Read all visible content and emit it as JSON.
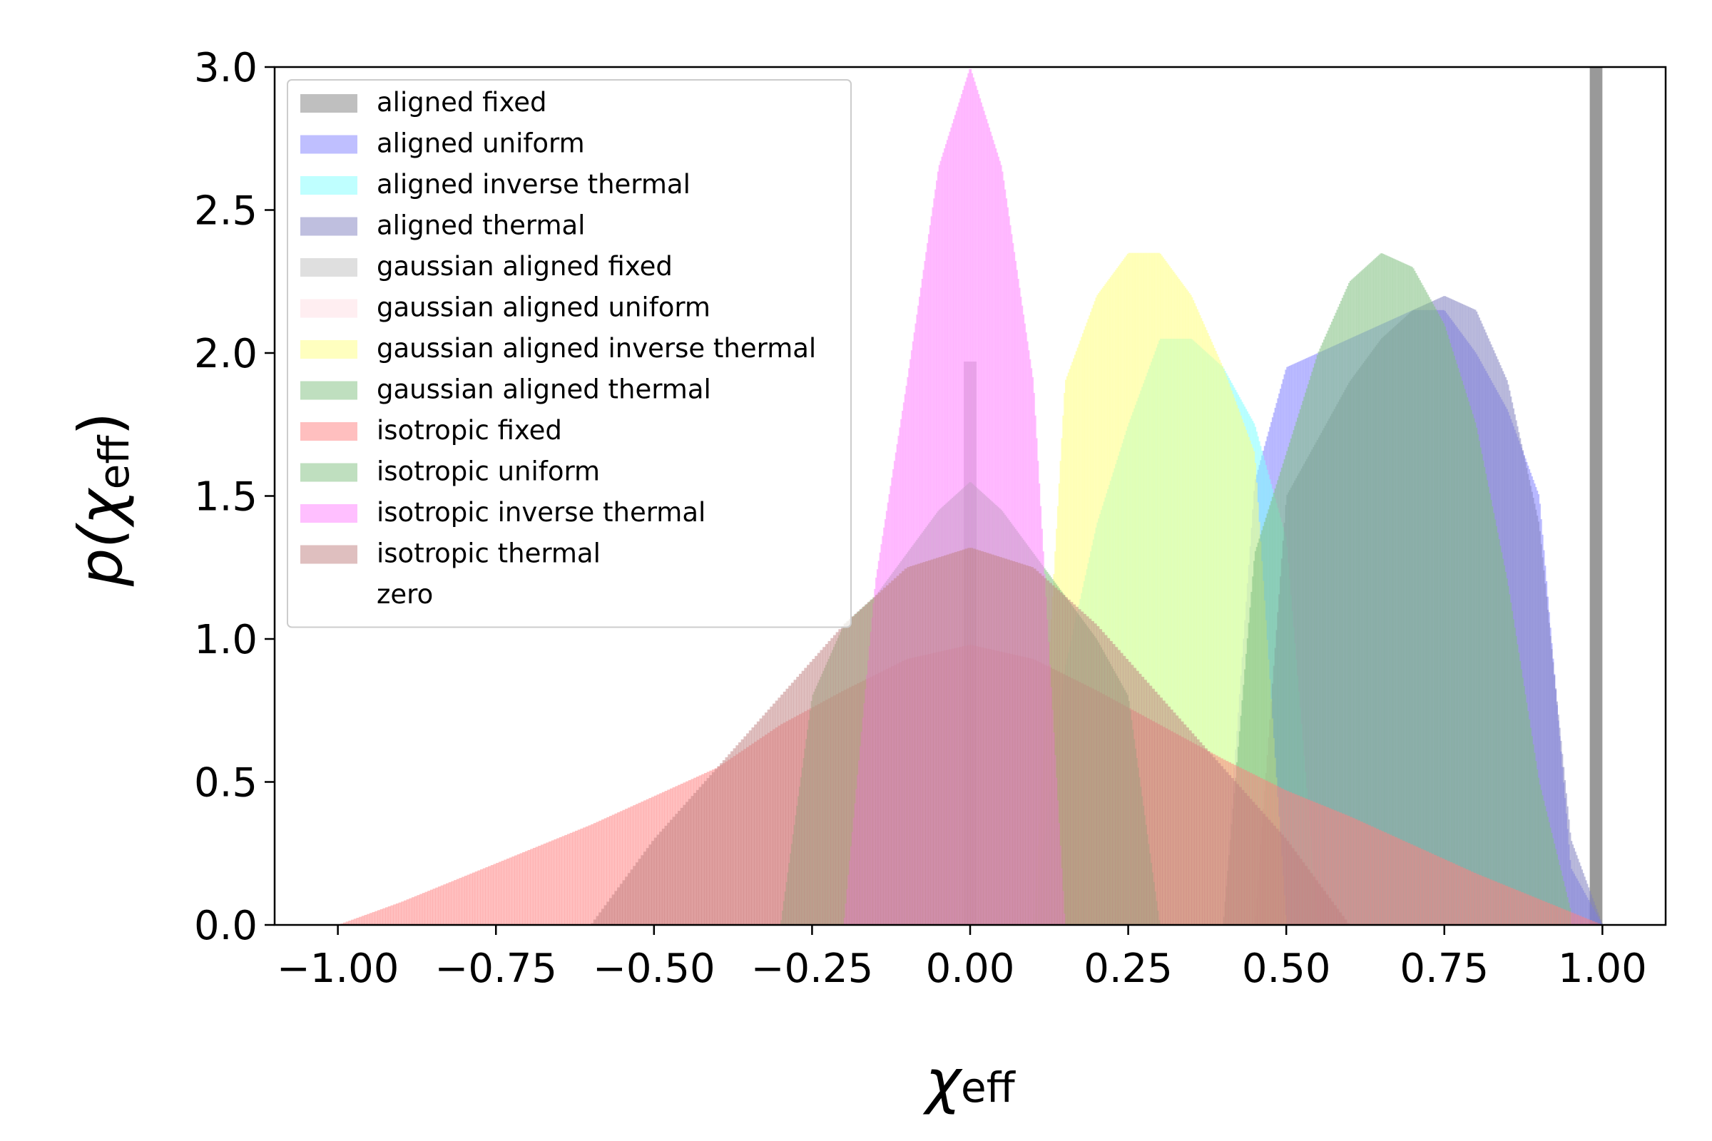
{
  "chart_data": {
    "type": "bar",
    "xlabel": "χeff",
    "ylabel": "p(χeff)",
    "xlim": [
      -1.1,
      1.1
    ],
    "ylim": [
      0,
      3.0
    ],
    "xticks": [
      -1.0,
      -0.75,
      -0.5,
      -0.25,
      0.0,
      0.25,
      0.5,
      0.75,
      1.0
    ],
    "xtick_labels": [
      "−1.00",
      "−0.75",
      "−0.50",
      "−0.25",
      "0.00",
      "0.25",
      "0.50",
      "0.75",
      "1.00"
    ],
    "yticks": [
      0.0,
      0.5,
      1.0,
      1.5,
      2.0,
      2.5,
      3.0
    ],
    "ytick_labels": [
      "0.0",
      "0.5",
      "1.0",
      "1.5",
      "2.0",
      "2.5",
      "3.0"
    ],
    "legend_position": "top-left",
    "grid": false,
    "series": [
      {
        "name": "aligned fixed",
        "color": "#808080",
        "kind": "spike",
        "center": 0.99,
        "width": 0.02,
        "value": 3.0
      },
      {
        "name": "aligned uniform",
        "color": "#8080ff",
        "kind": "hist",
        "x": [
          0.4,
          0.45,
          0.5,
          0.55,
          0.6,
          0.65,
          0.7,
          0.75,
          0.8,
          0.85,
          0.9,
          0.95,
          1.0
        ],
        "y": [
          0.0,
          1.55,
          1.95,
          2.0,
          2.05,
          2.1,
          2.15,
          2.15,
          2.0,
          1.8,
          1.5,
          0.2,
          0.0
        ]
      },
      {
        "name": "aligned inverse thermal",
        "color": "#80ffff",
        "kind": "hist",
        "x": [
          0.1,
          0.15,
          0.2,
          0.25,
          0.3,
          0.35,
          0.4,
          0.45,
          0.5,
          0.55,
          0.6
        ],
        "y": [
          0.0,
          0.9,
          1.4,
          1.75,
          2.05,
          2.05,
          1.95,
          1.75,
          1.35,
          0.0,
          0.0
        ]
      },
      {
        "name": "aligned thermal",
        "color": "#7f7fbf",
        "kind": "hist",
        "x": [
          0.45,
          0.5,
          0.55,
          0.6,
          0.65,
          0.7,
          0.75,
          0.8,
          0.85,
          0.9,
          0.95,
          1.0
        ],
        "y": [
          0.0,
          1.5,
          1.7,
          1.9,
          2.05,
          2.15,
          2.2,
          2.15,
          1.9,
          1.4,
          0.3,
          0.0
        ]
      },
      {
        "name": "gaussian aligned fixed",
        "color": "#bfbfbf",
        "kind": "spike",
        "center": 0.0,
        "width": 0.02,
        "value": 1.97
      },
      {
        "name": "gaussian aligned uniform",
        "color": "#ffdde3",
        "kind": "hist",
        "x": [
          -0.05,
          0.0,
          0.05
        ],
        "y": [
          0.0,
          0.0,
          0.0
        ]
      },
      {
        "name": "gaussian aligned inverse thermal",
        "color": "#ffff80",
        "kind": "hist",
        "x": [
          0.1,
          0.15,
          0.2,
          0.25,
          0.3,
          0.35,
          0.4,
          0.45,
          0.5
        ],
        "y": [
          0.0,
          1.9,
          2.2,
          2.35,
          2.35,
          2.2,
          1.95,
          1.65,
          0.0
        ]
      },
      {
        "name": "gaussian aligned thermal",
        "color": "#7fbf7f",
        "kind": "hist",
        "x": [
          0.4,
          0.45,
          0.5,
          0.55,
          0.6,
          0.65,
          0.7,
          0.75,
          0.8,
          0.85,
          0.9,
          0.95
        ],
        "y": [
          0.0,
          1.3,
          1.65,
          2.0,
          2.25,
          2.35,
          2.3,
          2.1,
          1.75,
          1.2,
          0.5,
          0.05
        ]
      },
      {
        "name": "isotropic fixed",
        "color": "#ff8080",
        "kind": "hist",
        "x": [
          -1.0,
          -0.9,
          -0.8,
          -0.7,
          -0.6,
          -0.5,
          -0.4,
          -0.3,
          -0.2,
          -0.1,
          0.0,
          0.1,
          0.2,
          0.3,
          0.4,
          0.5,
          0.6,
          0.7,
          0.8,
          0.9,
          1.0
        ],
        "y": [
          0.0,
          0.08,
          0.17,
          0.26,
          0.35,
          0.45,
          0.55,
          0.7,
          0.82,
          0.93,
          0.98,
          0.93,
          0.82,
          0.7,
          0.58,
          0.47,
          0.38,
          0.28,
          0.18,
          0.09,
          0.0
        ]
      },
      {
        "name": "isotropic uniform",
        "color": "#7fbf7f",
        "kind": "hist",
        "x": [
          -0.3,
          -0.25,
          -0.2,
          -0.15,
          -0.1,
          -0.05,
          0.0,
          0.05,
          0.1,
          0.15,
          0.2,
          0.25,
          0.3
        ],
        "y": [
          0.0,
          0.8,
          1.05,
          1.15,
          1.3,
          1.45,
          1.55,
          1.45,
          1.3,
          1.15,
          1.0,
          0.8,
          0.0
        ]
      },
      {
        "name": "isotropic inverse thermal",
        "color": "#ff80ff",
        "kind": "hist",
        "x": [
          -0.2,
          -0.15,
          -0.1,
          -0.05,
          0.0,
          0.05,
          0.1,
          0.15
        ],
        "y": [
          0.0,
          1.2,
          1.9,
          2.65,
          3.0,
          2.65,
          1.9,
          0.0
        ]
      },
      {
        "name": "isotropic thermal",
        "color": "#bf7f7f",
        "kind": "hist",
        "x": [
          -0.6,
          -0.5,
          -0.4,
          -0.3,
          -0.2,
          -0.1,
          0.0,
          0.1,
          0.2,
          0.3,
          0.4,
          0.5,
          0.6
        ],
        "y": [
          0.0,
          0.3,
          0.55,
          0.8,
          1.05,
          1.25,
          1.32,
          1.25,
          1.05,
          0.8,
          0.55,
          0.3,
          0.0
        ]
      },
      {
        "name": "zero",
        "color": "#ffffff",
        "kind": "none"
      }
    ]
  }
}
